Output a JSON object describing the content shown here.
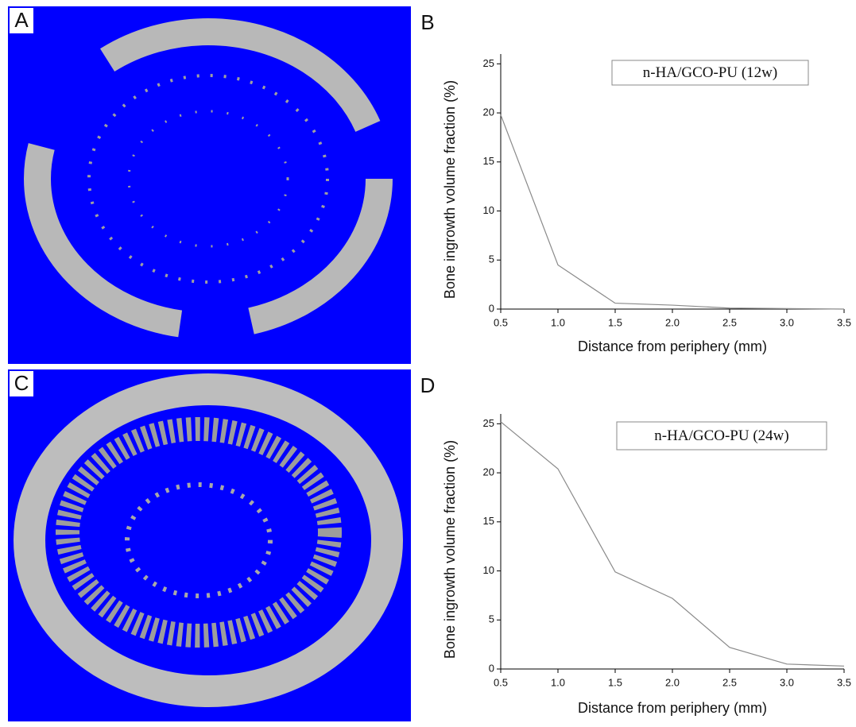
{
  "images": [
    {
      "label": "A"
    },
    {
      "label": "C"
    }
  ],
  "chart_data": [
    {
      "type": "line",
      "panel_label": "B",
      "legend": "n-HA/GCO-PU (12w)",
      "x_label": "Distance from periphery (mm)",
      "y_label": "Bone ingrowth volume fraction (%)",
      "x": [
        0.5,
        1.0,
        1.5,
        2.0,
        2.5,
        3.0,
        3.5
      ],
      "values": [
        19.8,
        4.5,
        0.6,
        0.4,
        0.1,
        0.05,
        0
      ],
      "color": "#8a8a8a",
      "xlim": [
        0.5,
        3.5
      ],
      "ylim": [
        0,
        26
      ],
      "xticks": [
        0.5,
        {
          "value": 1,
          "label": "1.0"
        },
        1.5,
        {
          "value": 2,
          "label": "2.0"
        },
        2.5,
        {
          "value": 3,
          "label": "3.0"
        },
        3.5
      ],
      "yticks": [
        0,
        5,
        10,
        15,
        20,
        25
      ]
    },
    {
      "type": "line",
      "panel_label": "D",
      "legend": "n-HA/GCO-PU (24w)",
      "x_label": "Distance from periphery (mm)",
      "y_label": "Bone ingrowth volume fraction (%)",
      "x": [
        0.5,
        1.0,
        1.5,
        2.0,
        2.5,
        3.0,
        3.5
      ],
      "values": [
        25.2,
        20.4,
        9.9,
        7.2,
        2.2,
        0.5,
        0.3
      ],
      "color": "#8a8a8a",
      "xlim": [
        0.5,
        3.5
      ],
      "ylim": [
        0,
        26
      ],
      "xticks": [
        0.5,
        {
          "value": 1,
          "label": "1.0"
        },
        1.5,
        {
          "value": 2,
          "label": "2.0"
        },
        2.5,
        {
          "value": 3,
          "label": "3.0"
        },
        3.5
      ],
      "yticks": [
        0,
        5,
        10,
        15,
        20,
        25
      ]
    }
  ]
}
